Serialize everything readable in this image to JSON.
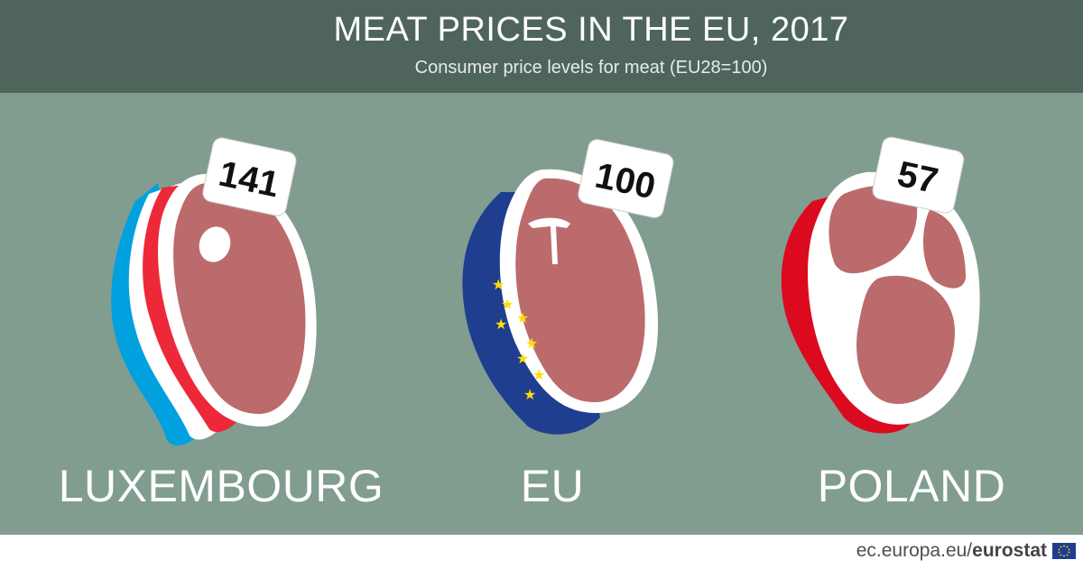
{
  "header": {
    "title": "MEAT PRICES IN THE EU, 2017",
    "subtitle": "Consumer price levels for meat (EU28=100)"
  },
  "chart_data": {
    "type": "bar",
    "title": "MEAT PRICES IN THE EU, 2017",
    "subtitle": "Consumer price levels for meat (EU28=100)",
    "categories": [
      "LUXEMBOURG",
      "EU",
      "POLAND"
    ],
    "values": [
      141,
      100,
      57
    ],
    "price_tags": [
      "141",
      "100",
      "57"
    ]
  },
  "colors": {
    "background": "#809d90",
    "header": "#4f655b",
    "meat": "#bb6b6c",
    "luxembourg_red": "#ed2939",
    "luxembourg_blue": "#00a1de",
    "eu_blue": "#1f3e8f",
    "eu_star": "#ffdd00",
    "poland_red": "#dc0a1e"
  },
  "icons": [
    "steak-luxembourg-icon",
    "steak-eu-icon",
    "steak-poland-icon",
    "price-tag-icon",
    "eu-flag-icon"
  ],
  "footer": {
    "source_prefix": "ec.europa.eu/",
    "source_brand": "eurostat"
  }
}
